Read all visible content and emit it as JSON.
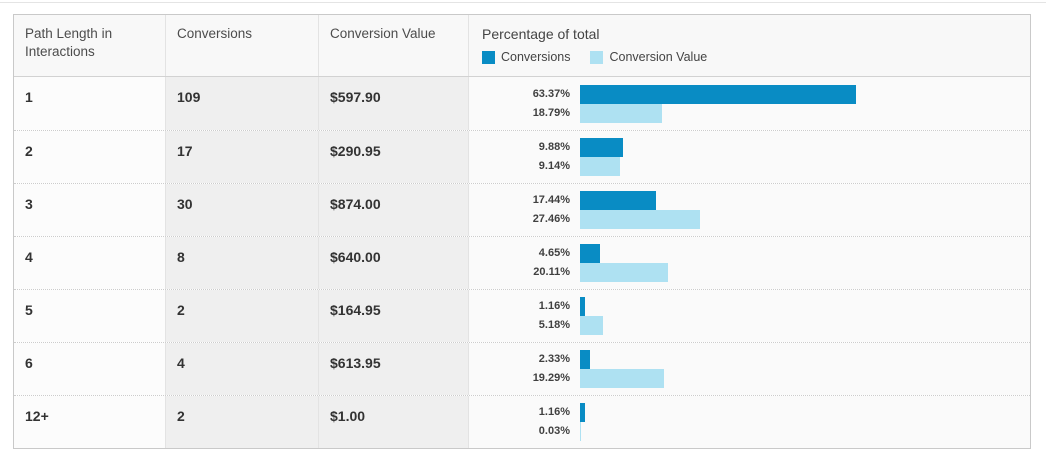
{
  "colors": {
    "conversions_bar": "#098cc4",
    "conversion_value_bar": "#aee1f2",
    "row_gray_background": "#efefef",
    "border": "#c9c9c9"
  },
  "table": {
    "columns": [
      {
        "label": "Path Length in Interactions"
      },
      {
        "label": "Conversions"
      },
      {
        "label": "Conversion Value"
      }
    ],
    "chart_header": {
      "title": "Percentage of total",
      "legend": [
        {
          "label": "Conversions"
        },
        {
          "label": "Conversion Value"
        }
      ]
    },
    "rows": [
      {
        "path_length": "1",
        "conversions": "109",
        "conversion_value": "$597.90",
        "conversions_pct": "63.37%",
        "value_pct": "18.79%"
      },
      {
        "path_length": "2",
        "conversions": "17",
        "conversion_value": "$290.95",
        "conversions_pct": "9.88%",
        "value_pct": "9.14%"
      },
      {
        "path_length": "3",
        "conversions": "30",
        "conversion_value": "$874.00",
        "conversions_pct": "17.44%",
        "value_pct": "27.46%"
      },
      {
        "path_length": "4",
        "conversions": "8",
        "conversion_value": "$640.00",
        "conversions_pct": "4.65%",
        "value_pct": "20.11%"
      },
      {
        "path_length": "5",
        "conversions": "2",
        "conversion_value": "$164.95",
        "conversions_pct": "1.16%",
        "value_pct": "5.18%"
      },
      {
        "path_length": "6",
        "conversions": "4",
        "conversion_value": "$613.95",
        "conversions_pct": "2.33%",
        "value_pct": "19.29%"
      },
      {
        "path_length": "12+",
        "conversions": "2",
        "conversion_value": "$1.00",
        "conversions_pct": "1.16%",
        "value_pct": "0.03%"
      }
    ]
  },
  "chart_data": {
    "type": "bar",
    "orientation": "horizontal",
    "title": "Percentage of total",
    "categories": [
      "1",
      "2",
      "3",
      "4",
      "5",
      "6",
      "12+"
    ],
    "categories_label": "Path Length in Interactions",
    "series": [
      {
        "name": "Conversions",
        "values_pct": [
          63.37,
          9.88,
          17.44,
          4.65,
          1.16,
          2.33,
          1.16
        ],
        "counts": [
          109,
          17,
          30,
          8,
          2,
          4,
          2
        ]
      },
      {
        "name": "Conversion Value",
        "values_pct": [
          18.79,
          9.14,
          27.46,
          20.11,
          5.18,
          19.29,
          0.03
        ],
        "amounts": [
          "$597.90",
          "$290.95",
          "$874.00",
          "$640.00",
          "$164.95",
          "$613.95",
          "$1.00"
        ]
      }
    ],
    "xlim_pct": [
      0,
      100
    ],
    "legend_position": "header",
    "grid": false
  }
}
